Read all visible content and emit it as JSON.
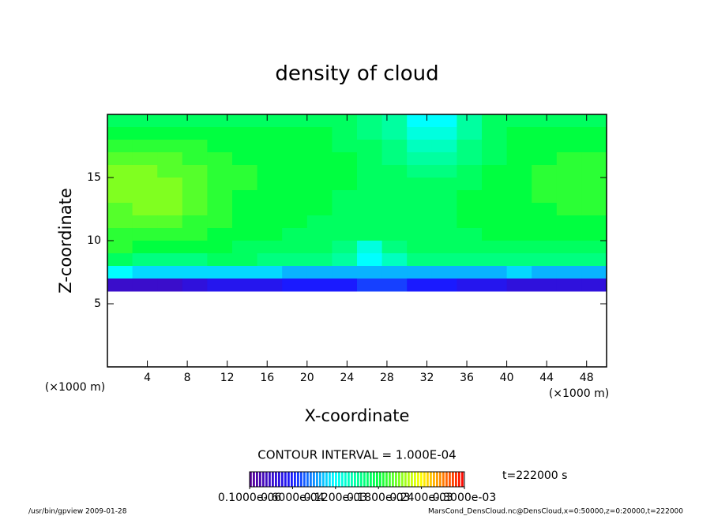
{
  "chart_data": {
    "type": "heatmap",
    "title": "density of cloud",
    "x_label": "X-coordinate",
    "y_label": "Z-coordinate",
    "x_unit_label": "(×1000 m)",
    "y_unit_label": "(×1000 m)",
    "contour_note": "CONTOUR INTERVAL = 1.000E-04",
    "time_label": "t=222000 s",
    "footer_left": "/usr/bin/gpview  2009-01-28",
    "footer_right": "MarsCond_DensCloud.nc@DensCloud,x=0:50000,z=0:20000,t=222000",
    "xlim": [
      0,
      50
    ],
    "ylim": [
      0,
      20
    ],
    "xticks": [
      4,
      8,
      12,
      16,
      20,
      24,
      28,
      32,
      36,
      40,
      44,
      48
    ],
    "yticks": [
      5,
      10,
      15
    ],
    "x": [
      1.25,
      3.75,
      6.25,
      8.75,
      11.25,
      13.75,
      16.25,
      18.75,
      21.25,
      23.75,
      26.25,
      28.75,
      31.25,
      33.75,
      36.25,
      38.75,
      41.25,
      43.75,
      46.25,
      48.75
    ],
    "y": [
      19.5,
      18.5,
      17.5,
      16.5,
      15.5,
      14.5,
      13.5,
      12.5,
      11.5,
      10.5,
      9.5,
      8.5,
      7.5,
      6.5
    ],
    "z": [
      [
        0.00017,
        0.00017,
        0.00017,
        0.00017,
        0.00017,
        0.00017,
        0.00017,
        0.00017,
        0.00017,
        0.00017,
        0.00016,
        0.00015,
        0.00012,
        0.00012,
        0.00015,
        0.00017,
        0.00017,
        0.00017,
        0.00017,
        0.00017
      ],
      [
        0.00018,
        0.00018,
        0.00018,
        0.00018,
        0.00018,
        0.00018,
        0.00018,
        0.00018,
        0.00018,
        0.00017,
        0.00016,
        0.00015,
        0.00013,
        0.00013,
        0.00015,
        0.00017,
        0.00018,
        0.00018,
        0.00018,
        0.00018
      ],
      [
        0.00019,
        0.00019,
        0.00019,
        0.00019,
        0.00018,
        0.00018,
        0.00018,
        0.00018,
        0.00018,
        0.00017,
        0.00017,
        0.00016,
        0.00014,
        0.00014,
        0.00016,
        0.00017,
        0.00018,
        0.00018,
        0.00018,
        0.00018
      ],
      [
        0.0002,
        0.0002,
        0.0002,
        0.00019,
        0.00019,
        0.00018,
        0.00018,
        0.00018,
        0.00018,
        0.00018,
        0.00017,
        0.00016,
        0.00015,
        0.00015,
        0.00016,
        0.00017,
        0.00018,
        0.00018,
        0.00019,
        0.00019
      ],
      [
        0.00021,
        0.00021,
        0.0002,
        0.0002,
        0.00019,
        0.00019,
        0.00018,
        0.00018,
        0.00018,
        0.00018,
        0.00017,
        0.00017,
        0.00016,
        0.00016,
        0.00017,
        0.00018,
        0.00018,
        0.00019,
        0.00019,
        0.00019
      ],
      [
        0.00021,
        0.00021,
        0.00021,
        0.0002,
        0.00019,
        0.00019,
        0.00018,
        0.00018,
        0.00018,
        0.00018,
        0.00017,
        0.00017,
        0.00017,
        0.00017,
        0.00017,
        0.00018,
        0.00018,
        0.00019,
        0.00019,
        0.00019
      ],
      [
        0.00021,
        0.00021,
        0.00021,
        0.0002,
        0.00019,
        0.00018,
        0.00018,
        0.00018,
        0.00018,
        0.00017,
        0.00017,
        0.00017,
        0.00017,
        0.00017,
        0.00018,
        0.00018,
        0.00018,
        0.00019,
        0.00019,
        0.00019
      ],
      [
        0.0002,
        0.00021,
        0.00021,
        0.0002,
        0.00019,
        0.00018,
        0.00018,
        0.00018,
        0.00018,
        0.00017,
        0.00017,
        0.00017,
        0.00017,
        0.00017,
        0.00018,
        0.00018,
        0.00018,
        0.00018,
        0.00019,
        0.00019
      ],
      [
        0.0002,
        0.0002,
        0.0002,
        0.00019,
        0.00019,
        0.00018,
        0.00018,
        0.00018,
        0.00017,
        0.00017,
        0.00017,
        0.00017,
        0.00017,
        0.00017,
        0.00018,
        0.00018,
        0.00018,
        0.00018,
        0.00018,
        0.00018
      ],
      [
        0.00019,
        0.00019,
        0.00019,
        0.00019,
        0.00018,
        0.00018,
        0.00018,
        0.00017,
        0.00017,
        0.00017,
        0.00017,
        0.00017,
        0.00017,
        0.00017,
        0.00017,
        0.00018,
        0.00018,
        0.00018,
        0.00018,
        0.00018
      ],
      [
        0.00019,
        0.00018,
        0.00018,
        0.00018,
        0.00018,
        0.00017,
        0.00017,
        0.00017,
        0.00017,
        0.00016,
        0.00013,
        0.00016,
        0.00017,
        0.00017,
        0.00017,
        0.00017,
        0.00017,
        0.00017,
        0.00017,
        0.00017
      ],
      [
        0.00017,
        0.00016,
        0.00016,
        0.00016,
        0.00017,
        0.00017,
        0.00016,
        0.00016,
        0.00016,
        0.00015,
        0.00012,
        0.00014,
        0.00016,
        0.00016,
        0.00016,
        0.00016,
        0.00016,
        0.00016,
        0.00016,
        0.00016
      ],
      [
        0.00012,
        0.00011,
        0.00011,
        0.00011,
        0.00011,
        0.00011,
        0.00011,
        0.0001,
        0.0001,
        0.0001,
        0.0001,
        0.0001,
        0.0001,
        0.0001,
        0.0001,
        0.0001,
        0.00011,
        0.0001,
        0.0001,
        0.0001
      ],
      [
        3e-05,
        3e-05,
        3e-05,
        4e-05,
        5e-05,
        5e-05,
        5e-05,
        6e-05,
        6e-05,
        6e-05,
        7e-05,
        7e-05,
        6e-05,
        6e-05,
        5e-05,
        5e-05,
        4e-05,
        4e-05,
        4e-05,
        4e-05
      ]
    ],
    "clim": [
      0,
      0.0003
    ],
    "cticks": [
      {
        "value": 1e-07,
        "label": "0.1000e-06"
      },
      {
        "value": 6e-05,
        "label": "0.6000e-04"
      },
      {
        "value": 0.00012,
        "label": "0.1200e-03"
      },
      {
        "value": 0.00018,
        "label": "0.1800e-03"
      },
      {
        "value": 0.00024,
        "label": "0.2400e-03"
      },
      {
        "value": 0.0003,
        "label": "0.3000e-03"
      }
    ],
    "colormap": [
      "#5a0096",
      "#1a1aff",
      "#00ffff",
      "#00ff40",
      "#ffff00",
      "#ff0000"
    ]
  }
}
